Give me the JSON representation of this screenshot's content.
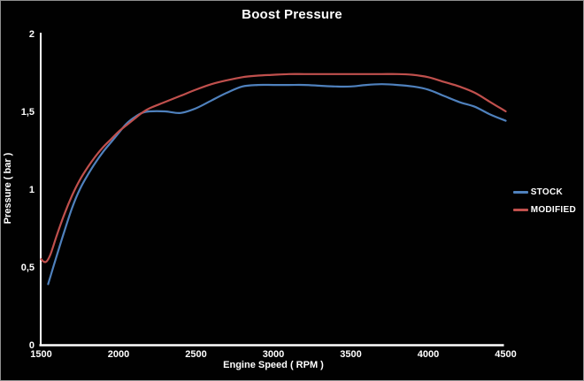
{
  "chart_data": {
    "type": "line",
    "title": "Boost Pressure",
    "xlabel": "Engine Speed ( RPM )",
    "ylabel": "Pressure ( bar )",
    "xlim": [
      1500,
      4500
    ],
    "ylim": [
      0,
      2
    ],
    "grid": "off",
    "legend_position": "right",
    "background_color": "#000000",
    "axis_color": "#ffffff",
    "text_color": "#ffffff",
    "x_ticks": [
      {
        "value": 1500,
        "label": "1500"
      },
      {
        "value": 2000,
        "label": "2000"
      },
      {
        "value": 2500,
        "label": "2500"
      },
      {
        "value": 3000,
        "label": "3000"
      },
      {
        "value": 3500,
        "label": "3500"
      },
      {
        "value": 4000,
        "label": "4000"
      },
      {
        "value": 4500,
        "label": "4500"
      }
    ],
    "y_ticks": [
      {
        "value": 0,
        "label": "0"
      },
      {
        "value": 0.5,
        "label": "0,5"
      },
      {
        "value": 1,
        "label": "1"
      },
      {
        "value": 1.5,
        "label": "1,5"
      },
      {
        "value": 2,
        "label": "2"
      }
    ],
    "series": [
      {
        "name": "STOCK",
        "color": "#4f81bd",
        "points": [
          [
            1545,
            0.39
          ],
          [
            1600,
            0.57
          ],
          [
            1650,
            0.73
          ],
          [
            1700,
            0.88
          ],
          [
            1750,
            1.0
          ],
          [
            1800,
            1.09
          ],
          [
            1850,
            1.17
          ],
          [
            1900,
            1.24
          ],
          [
            1950,
            1.3
          ],
          [
            2000,
            1.36
          ],
          [
            2050,
            1.42
          ],
          [
            2100,
            1.46
          ],
          [
            2150,
            1.49
          ],
          [
            2200,
            1.5
          ],
          [
            2300,
            1.5
          ],
          [
            2400,
            1.49
          ],
          [
            2500,
            1.52
          ],
          [
            2600,
            1.57
          ],
          [
            2700,
            1.62
          ],
          [
            2800,
            1.66
          ],
          [
            2900,
            1.67
          ],
          [
            3000,
            1.67
          ],
          [
            3100,
            1.67
          ],
          [
            3200,
            1.67
          ],
          [
            3300,
            1.665
          ],
          [
            3400,
            1.66
          ],
          [
            3500,
            1.66
          ],
          [
            3600,
            1.67
          ],
          [
            3700,
            1.675
          ],
          [
            3800,
            1.67
          ],
          [
            3900,
            1.66
          ],
          [
            4000,
            1.64
          ],
          [
            4100,
            1.6
          ],
          [
            4200,
            1.56
          ],
          [
            4300,
            1.53
          ],
          [
            4400,
            1.48
          ],
          [
            4500,
            1.44
          ]
        ]
      },
      {
        "name": "MODIFIED",
        "color": "#c0504d",
        "points": [
          [
            1500,
            0.55
          ],
          [
            1515,
            0.535
          ],
          [
            1535,
            0.535
          ],
          [
            1560,
            0.58
          ],
          [
            1600,
            0.7
          ],
          [
            1650,
            0.84
          ],
          [
            1700,
            0.96
          ],
          [
            1750,
            1.06
          ],
          [
            1800,
            1.14
          ],
          [
            1850,
            1.21
          ],
          [
            1900,
            1.27
          ],
          [
            1950,
            1.32
          ],
          [
            2000,
            1.37
          ],
          [
            2050,
            1.41
          ],
          [
            2100,
            1.45
          ],
          [
            2150,
            1.49
          ],
          [
            2200,
            1.52
          ],
          [
            2300,
            1.56
          ],
          [
            2400,
            1.6
          ],
          [
            2500,
            1.64
          ],
          [
            2600,
            1.675
          ],
          [
            2700,
            1.7
          ],
          [
            2800,
            1.72
          ],
          [
            2900,
            1.73
          ],
          [
            3000,
            1.735
          ],
          [
            3100,
            1.74
          ],
          [
            3200,
            1.74
          ],
          [
            3300,
            1.74
          ],
          [
            3400,
            1.74
          ],
          [
            3500,
            1.74
          ],
          [
            3600,
            1.74
          ],
          [
            3700,
            1.74
          ],
          [
            3800,
            1.74
          ],
          [
            3900,
            1.735
          ],
          [
            4000,
            1.72
          ],
          [
            4100,
            1.69
          ],
          [
            4200,
            1.66
          ],
          [
            4300,
            1.62
          ],
          [
            4400,
            1.56
          ],
          [
            4500,
            1.5
          ]
        ]
      }
    ]
  }
}
